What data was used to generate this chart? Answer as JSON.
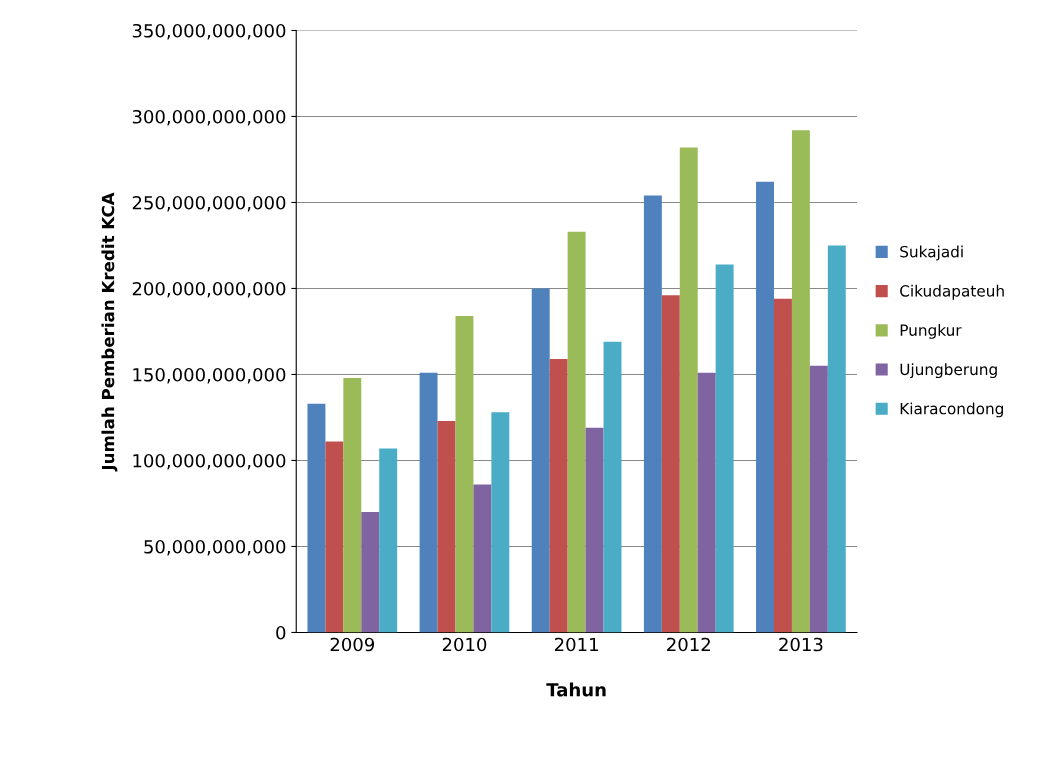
{
  "chart_data": {
    "type": "bar",
    "xlabel": "Tahun",
    "ylabel": "Jumlah Pemberian Kredit KCA",
    "categories": [
      "2009",
      "2010",
      "2011",
      "2012",
      "2013"
    ],
    "series": [
      {
        "name": "Sukajadi",
        "color": "#4f81bd",
        "values": [
          133000000000,
          151000000000,
          200000000000,
          254000000000,
          262000000000
        ]
      },
      {
        "name": "Cikudapateuh",
        "color": "#c0504d",
        "values": [
          111000000000,
          123000000000,
          159000000000,
          196000000000,
          194000000000
        ]
      },
      {
        "name": "Pungkur",
        "color": "#9bbb59",
        "values": [
          148000000000,
          184000000000,
          233000000000,
          282000000000,
          292000000000
        ]
      },
      {
        "name": "Ujungberung",
        "color": "#8064a2",
        "values": [
          70000000000,
          86000000000,
          119000000000,
          151000000000,
          155000000000
        ]
      },
      {
        "name": "Kiaracondong",
        "color": "#4bacc6",
        "values": [
          107000000000,
          128000000000,
          169000000000,
          214000000000,
          225000000000
        ]
      }
    ],
    "ylim": [
      0,
      350000000000
    ],
    "yticks": [
      {
        "value": 0,
        "label": "0"
      },
      {
        "value": 50000000000,
        "label": "50,000,000,000"
      },
      {
        "value": 100000000000,
        "label": "100,000,000,000"
      },
      {
        "value": 150000000000,
        "label": "150,000,000,000"
      },
      {
        "value": 200000000000,
        "label": "200,000,000,000"
      },
      {
        "value": 250000000000,
        "label": "250,000,000,000"
      },
      {
        "value": 300000000000,
        "label": "300,000,000,000"
      },
      {
        "value": 350000000000,
        "label": "350,000,000,000"
      }
    ],
    "grid": "y",
    "legend": "right"
  }
}
